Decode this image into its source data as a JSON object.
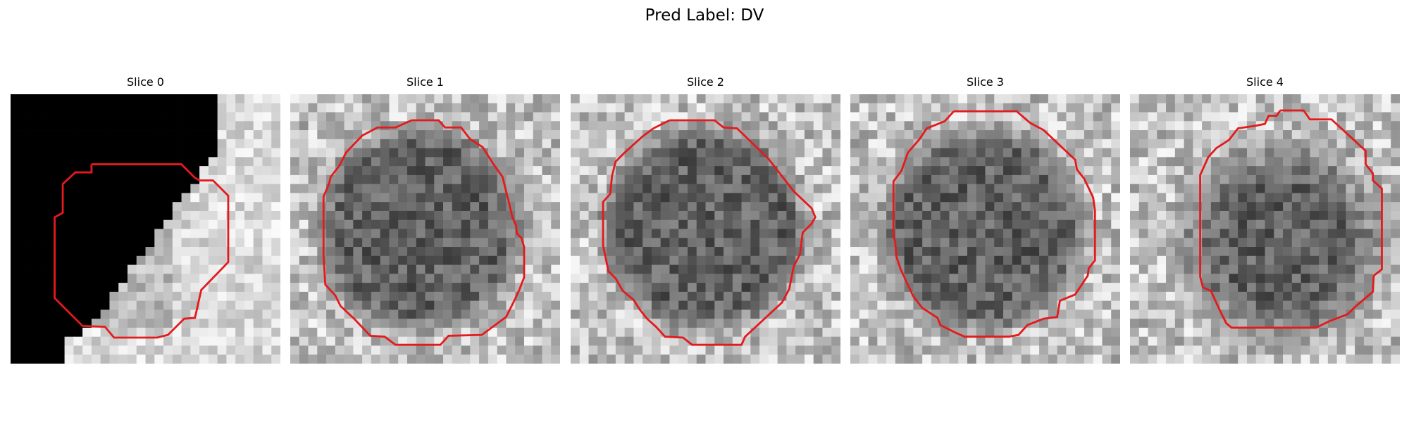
{
  "figure": {
    "suptitle": "Pred Label: DV",
    "contour_color": "#e41a1c",
    "colormap": "grayscale",
    "grid_size": 30
  },
  "slices": [
    {
      "title": "Slice 0",
      "style": "masked"
    },
    {
      "title": "Slice 1",
      "style": "disc"
    },
    {
      "title": "Slice 2",
      "style": "disc"
    },
    {
      "title": "Slice 3",
      "style": "disc"
    },
    {
      "title": "Slice 4",
      "style": "soft"
    }
  ]
}
